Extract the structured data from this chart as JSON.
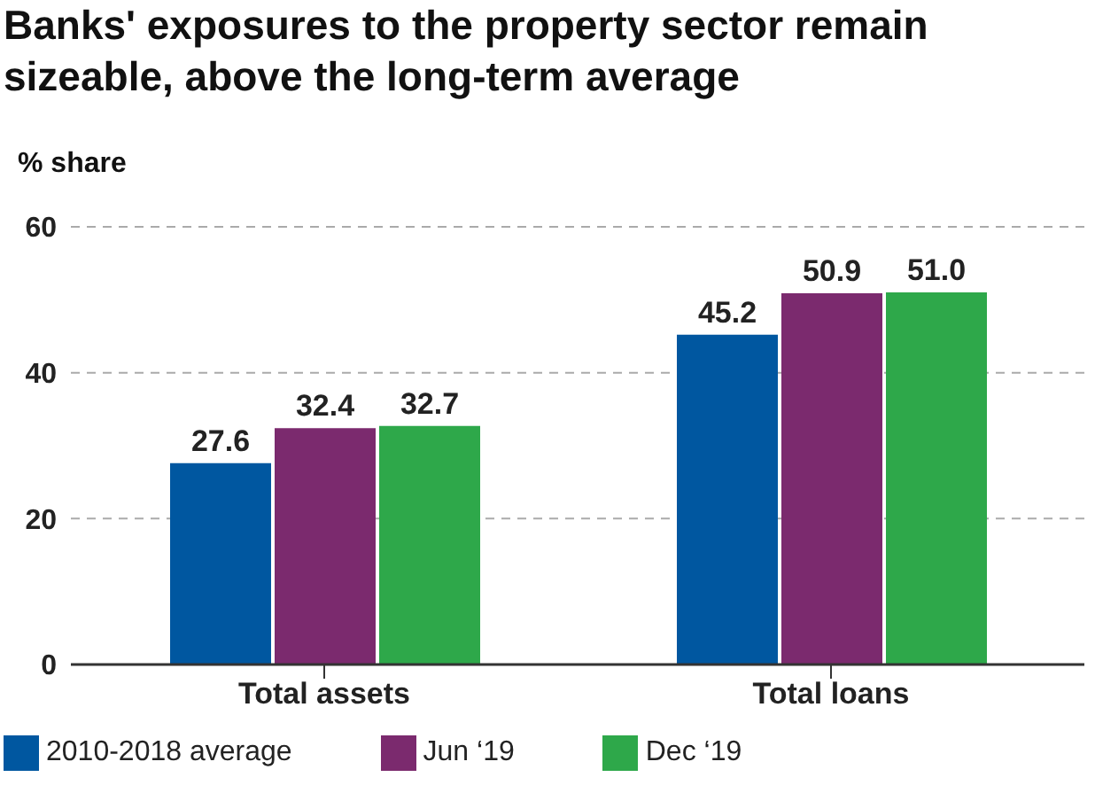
{
  "chart_data": {
    "type": "bar",
    "title": "Banks' exposures to the property sector remain sizeable, above the long-term average",
    "ylabel": "% share",
    "categories": [
      "Total assets",
      "Total loans"
    ],
    "series": [
      {
        "name": "2010-2018 average",
        "color": "#0057a0",
        "values": [
          27.6,
          45.2
        ],
        "value_labels": [
          "27.6",
          "45.2"
        ]
      },
      {
        "name": "Jun ‘19",
        "color": "#7b2a6e",
        "values": [
          32.4,
          50.9
        ],
        "value_labels": [
          "32.4",
          "50.9"
        ]
      },
      {
        "name": "Dec ‘19",
        "color": "#2ea84a",
        "values": [
          32.7,
          51.0
        ],
        "value_labels": [
          "32.7",
          "51.0"
        ]
      }
    ],
    "ylim": [
      0,
      60
    ],
    "yticks": [
      0,
      20,
      40,
      60
    ],
    "grid": "y",
    "legend": "bottom"
  }
}
